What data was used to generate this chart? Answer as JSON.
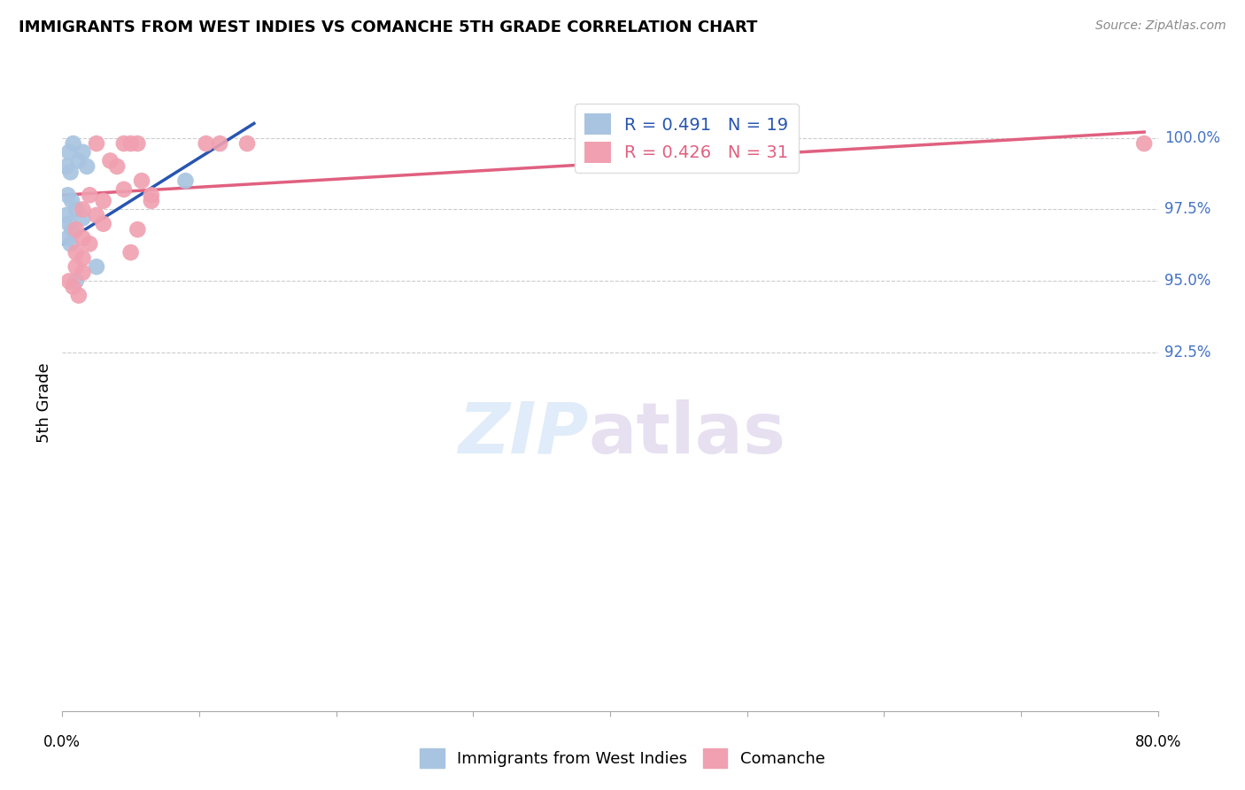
{
  "title": "IMMIGRANTS FROM WEST INDIES VS COMANCHE 5TH GRADE CORRELATION CHART",
  "source": "Source: ZipAtlas.com",
  "ylabel": "5th Grade",
  "xlim": [
    0.0,
    80.0
  ],
  "ylim": [
    80.0,
    101.5
  ],
  "blue_label": "Immigrants from West Indies",
  "pink_label": "Comanche",
  "blue_R": 0.491,
  "blue_N": 19,
  "pink_R": 0.426,
  "pink_N": 31,
  "blue_color": "#a8c4e0",
  "pink_color": "#f0a0b0",
  "blue_line_color": "#2855b0",
  "pink_line_color": "#e06080",
  "legend_text_color": "#2855b0",
  "right_tick_color": "#4472c4",
  "grid_color": "#cccccc",
  "ytick_positions": [
    92.5,
    95.0,
    97.5,
    100.0
  ],
  "ytick_labels": [
    "92.5%",
    "95.0%",
    "97.5%",
    "100.0%"
  ],
  "blue_dots": [
    [
      0.5,
      99.5
    ],
    [
      0.8,
      99.8
    ],
    [
      1.2,
      99.2
    ],
    [
      1.5,
      99.5
    ],
    [
      0.3,
      99.0
    ],
    [
      0.6,
      98.8
    ],
    [
      1.8,
      99.0
    ],
    [
      0.4,
      98.0
    ],
    [
      0.7,
      97.8
    ],
    [
      1.0,
      97.5
    ],
    [
      0.3,
      97.3
    ],
    [
      0.5,
      97.0
    ],
    [
      0.7,
      96.8
    ],
    [
      0.4,
      96.5
    ],
    [
      0.6,
      96.3
    ],
    [
      1.5,
      97.2
    ],
    [
      9.0,
      98.5
    ],
    [
      2.5,
      95.5
    ],
    [
      1.0,
      95.0
    ]
  ],
  "pink_dots": [
    [
      2.5,
      99.8
    ],
    [
      4.5,
      99.8
    ],
    [
      5.0,
      99.8
    ],
    [
      5.5,
      99.8
    ],
    [
      10.5,
      99.8
    ],
    [
      11.5,
      99.8
    ],
    [
      13.5,
      99.8
    ],
    [
      79.0,
      99.8
    ],
    [
      3.5,
      99.2
    ],
    [
      4.0,
      99.0
    ],
    [
      5.8,
      98.5
    ],
    [
      2.0,
      98.0
    ],
    [
      3.0,
      97.8
    ],
    [
      4.5,
      98.2
    ],
    [
      6.5,
      98.0
    ],
    [
      1.5,
      97.5
    ],
    [
      2.5,
      97.3
    ],
    [
      3.0,
      97.0
    ],
    [
      1.0,
      96.8
    ],
    [
      1.5,
      96.5
    ],
    [
      2.0,
      96.3
    ],
    [
      1.0,
      96.0
    ],
    [
      1.5,
      95.8
    ],
    [
      6.5,
      97.8
    ],
    [
      5.5,
      96.8
    ],
    [
      5.0,
      96.0
    ],
    [
      1.0,
      95.5
    ],
    [
      1.5,
      95.3
    ],
    [
      0.5,
      95.0
    ],
    [
      0.8,
      94.8
    ],
    [
      1.2,
      94.5
    ]
  ],
  "blue_line_points": [
    [
      0.0,
      96.3
    ],
    [
      14.0,
      100.5
    ]
  ],
  "pink_line_points": [
    [
      0.0,
      98.0
    ],
    [
      79.0,
      100.2
    ]
  ]
}
